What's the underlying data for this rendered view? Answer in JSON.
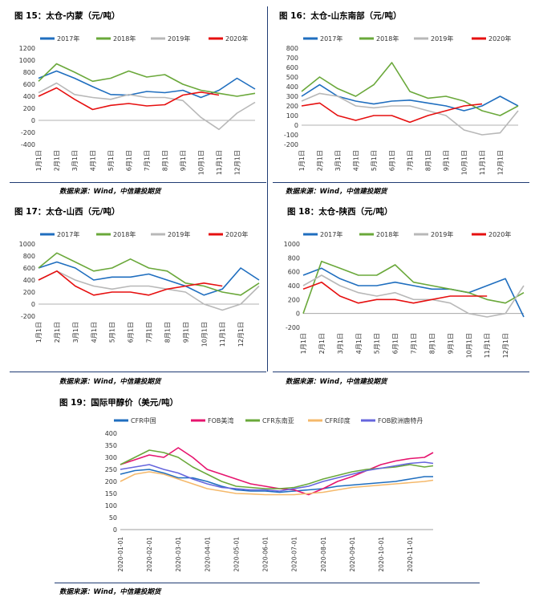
{
  "titles": {
    "c15": "图 15：太仓-内蒙（元/吨）",
    "c16": "图 16：太仓-山东南部（元/吨）",
    "c17": "图 17：太仓-山西（元/吨）",
    "c18": "图 18：太仓-陕西（元/吨）",
    "c19": "图 19：国际甲醇价（美元/吨）"
  },
  "source": "数据来源：Wind，中信建投期货",
  "colors": {
    "s2017": "#1f6ebf",
    "s2018": "#6aa83a",
    "s2019": "#b8b8b8",
    "s2020": "#e60f0f",
    "cfr_china": "#1f6ebf",
    "fob_us": "#e6146e",
    "cfr_sea": "#6aa83a",
    "cfr_india": "#f5b96b",
    "fob_rotterdam": "#6666dd"
  },
  "chart_data": [
    {
      "id": "c15",
      "type": "line",
      "series_names": [
        "2017年",
        "2018年",
        "2019年",
        "2020年"
      ],
      "ylim": [
        -400,
        1200
      ],
      "yticks": [
        -400,
        -200,
        0,
        200,
        400,
        600,
        800,
        1000,
        1200
      ],
      "xticks": [
        "1月1日",
        "2月1日",
        "3月1日",
        "4月1日",
        "5月1日",
        "6月1日",
        "7月1日",
        "8月1日",
        "9月1日",
        "10月1日",
        "11月1日",
        "12月1日"
      ],
      "x_months": [
        0,
        1,
        2,
        3,
        4,
        5,
        6,
        7,
        8,
        9,
        10,
        11,
        12
      ],
      "series": [
        {
          "name": "2017年",
          "values": [
            700,
            820,
            700,
            560,
            430,
            420,
            480,
            460,
            500,
            380,
            500,
            700,
            520
          ]
        },
        {
          "name": "2018年",
          "values": [
            650,
            940,
            800,
            650,
            700,
            820,
            720,
            760,
            600,
            500,
            450,
            400,
            450
          ]
        },
        {
          "name": "2019年",
          "values": [
            460,
            620,
            430,
            380,
            350,
            430,
            380,
            380,
            330,
            50,
            -150,
            120,
            300
          ]
        },
        {
          "name": "2020年",
          "values": [
            400,
            540,
            350,
            180,
            250,
            280,
            240,
            260,
            420,
            470,
            420,
            null,
            null
          ]
        }
      ]
    },
    {
      "id": "c16",
      "type": "line",
      "series_names": [
        "2017年",
        "2018年",
        "2019年",
        "2020年"
      ],
      "ylim": [
        -200,
        800
      ],
      "yticks": [
        -200,
        -100,
        0,
        100,
        200,
        300,
        400,
        500,
        600,
        700,
        800
      ],
      "xticks": [
        "1月1日",
        "2月1日",
        "3月1日",
        "4月1日",
        "5月1日",
        "6月1日",
        "7月1日",
        "8月1日",
        "9月1日",
        "10月1日",
        "11月1日",
        "12月1日"
      ],
      "x_months": [
        0,
        1,
        2,
        3,
        4,
        5,
        6,
        7,
        8,
        9,
        10,
        11,
        12
      ],
      "series": [
        {
          "name": "2017年",
          "values": [
            300,
            420,
            300,
            250,
            220,
            250,
            260,
            230,
            200,
            150,
            200,
            300,
            200
          ]
        },
        {
          "name": "2018年",
          "values": [
            350,
            500,
            380,
            300,
            420,
            650,
            350,
            280,
            300,
            250,
            150,
            100,
            200
          ]
        },
        {
          "name": "2019年",
          "values": [
            250,
            330,
            300,
            200,
            180,
            200,
            200,
            150,
            100,
            -50,
            -100,
            -80,
            150
          ]
        },
        {
          "name": "2020年",
          "values": [
            200,
            230,
            100,
            50,
            100,
            100,
            30,
            100,
            150,
            200,
            220,
            null,
            null
          ]
        }
      ]
    },
    {
      "id": "c17",
      "type": "line",
      "series_names": [
        "2017年",
        "2018年",
        "2019年",
        "2020年"
      ],
      "ylim": [
        -200,
        1000
      ],
      "yticks": [
        -200,
        0,
        200,
        400,
        600,
        800,
        1000
      ],
      "xticks": [
        "1月1日",
        "2月1日",
        "3月1日",
        "4月1日",
        "5月1日",
        "6月1日",
        "7月1日",
        "8月1日",
        "9月1日",
        "10月1日",
        "11月1日",
        "12月1日"
      ],
      "x_months": [
        0,
        1,
        2,
        3,
        4,
        5,
        6,
        7,
        8,
        9,
        10,
        11,
        12
      ],
      "series": [
        {
          "name": "2017年",
          "values": [
            600,
            700,
            600,
            400,
            450,
            450,
            500,
            400,
            300,
            150,
            250,
            600,
            400
          ]
        },
        {
          "name": "2018年",
          "values": [
            600,
            850,
            700,
            550,
            600,
            750,
            600,
            550,
            350,
            300,
            200,
            150,
            350
          ]
        },
        {
          "name": "2019年",
          "values": [
            400,
            550,
            400,
            300,
            250,
            300,
            300,
            250,
            200,
            0,
            -100,
            0,
            300
          ]
        },
        {
          "name": "2020年",
          "values": [
            400,
            550,
            300,
            150,
            200,
            200,
            150,
            250,
            300,
            350,
            300,
            null,
            null
          ]
        }
      ]
    },
    {
      "id": "c18",
      "type": "line",
      "series_names": [
        "2017年",
        "2018年",
        "2019年",
        "2020年"
      ],
      "ylim": [
        -200,
        1000
      ],
      "yticks": [
        -200,
        0,
        200,
        400,
        600,
        800,
        1000
      ],
      "xticks": [
        "1月1日",
        "2月1日",
        "3月1日",
        "4月1日",
        "5月1日",
        "6月1日",
        "7月1日",
        "8月1日",
        "9月1日",
        "10月1日",
        "11月1日",
        "12月1日"
      ],
      "x_months": [
        0,
        1,
        2,
        3,
        4,
        5,
        6,
        7,
        8,
        9,
        10,
        11,
        12
      ],
      "series": [
        {
          "name": "2017年",
          "values": [
            550,
            650,
            500,
            400,
            400,
            450,
            400,
            350,
            350,
            300,
            400,
            500,
            -50
          ]
        },
        {
          "name": "2018年",
          "values": [
            0,
            750,
            650,
            550,
            550,
            700,
            450,
            400,
            350,
            300,
            200,
            150,
            300
          ]
        },
        {
          "name": "2019年",
          "values": [
            400,
            550,
            400,
            300,
            250,
            300,
            200,
            200,
            150,
            0,
            -50,
            0,
            400
          ]
        },
        {
          "name": "2020年",
          "values": [
            350,
            450,
            250,
            150,
            200,
            200,
            150,
            200,
            250,
            250,
            250,
            null,
            null
          ]
        }
      ]
    },
    {
      "id": "c19",
      "type": "line",
      "series_names": [
        "CFR中国",
        "FOB美湾",
        "CFR东南亚",
        "CFR印度",
        "FOB欧洲鹿特丹"
      ],
      "ylim": [
        0,
        400
      ],
      "yticks": [
        0,
        50,
        100,
        150,
        200,
        250,
        300,
        350,
        400
      ],
      "xticks": [
        "2020-01-01",
        "2020-02-01",
        "2020-03-01",
        "2020-04-01",
        "2020-05-01",
        "2020-06-01",
        "2020-07-01",
        "2020-08-01",
        "2020-09-01",
        "2020-10-01",
        "2020-11-01"
      ],
      "x_months": [
        0,
        0.5,
        1,
        1.5,
        2,
        2.5,
        3,
        3.5,
        4,
        4.5,
        5,
        5.5,
        6,
        6.5,
        7,
        7.5,
        8,
        8.5,
        9,
        9.5,
        10,
        10.5,
        10.8
      ],
      "series": [
        {
          "name": "CFR中国",
          "values": [
            230,
            245,
            250,
            235,
            215,
            215,
            200,
            180,
            165,
            160,
            160,
            155,
            160,
            165,
            170,
            180,
            185,
            190,
            195,
            200,
            210,
            220,
            220
          ]
        },
        {
          "name": "FOB美湾",
          "values": [
            270,
            290,
            310,
            300,
            340,
            300,
            250,
            230,
            210,
            190,
            180,
            170,
            165,
            145,
            170,
            200,
            220,
            245,
            270,
            285,
            295,
            300,
            320
          ]
        },
        {
          "name": "CFR东南亚",
          "values": [
            270,
            300,
            330,
            320,
            300,
            260,
            230,
            200,
            180,
            175,
            170,
            170,
            175,
            190,
            210,
            225,
            240,
            250,
            255,
            260,
            270,
            260,
            265
          ]
        },
        {
          "name": "CFR印度",
          "values": [
            200,
            230,
            240,
            230,
            210,
            190,
            170,
            160,
            150,
            148,
            145,
            145,
            145,
            150,
            155,
            165,
            175,
            180,
            185,
            190,
            195,
            200,
            205
          ]
        },
        {
          "name": "FOB欧洲鹿特丹",
          "values": [
            250,
            260,
            270,
            250,
            235,
            210,
            190,
            175,
            170,
            165,
            165,
            160,
            170,
            180,
            200,
            215,
            230,
            245,
            255,
            265,
            275,
            280,
            275
          ]
        }
      ]
    }
  ]
}
